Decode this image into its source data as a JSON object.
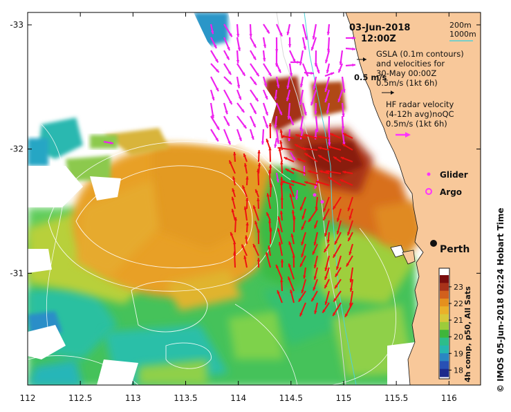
{
  "header": {
    "date": "03-Jun-2018",
    "time": "12:00Z"
  },
  "depth_legend": {
    "entries": [
      {
        "label": "200m",
        "color": "#c0c0c0"
      },
      {
        "label": "1000m",
        "color": "#4fd0d8"
      }
    ]
  },
  "gsla_legend": {
    "lines": [
      "GSLA (0.1m contours)",
      "and velocities for",
      "30-May 00:00Z",
      "0.5m/s (1kt 6h)"
    ],
    "scale_label": "0.5 m/s"
  },
  "hf_legend": {
    "lines": [
      "HF radar velocity",
      "(4-12h avg)noQC",
      "0.5m/s (1kt 6h)"
    ]
  },
  "markers": {
    "glider_label": "Glider",
    "argo_label": "Argo",
    "city_label": "Perth"
  },
  "colorbar": {
    "label": "4h comp, p50, All Sats",
    "ticks": [
      "23",
      "22",
      "21",
      "20",
      "19",
      "18"
    ],
    "min": 17.6,
    "max": 23.7,
    "colors": [
      "#7a0d0d",
      "#a8321a",
      "#d2601c",
      "#e5901e",
      "#eab12a",
      "#d8c83a",
      "#9ccc3a",
      "#3fb63a",
      "#2dbd8a",
      "#26b6b0",
      "#2a86c2",
      "#2850b4",
      "#1c2a8c"
    ]
  },
  "credit": "©  IMOS 05-Jun-2018 02:24 Hobart Time",
  "axes": {
    "x_ticks": [
      "112",
      "112.5",
      "113",
      "113.5",
      "114",
      "114.5",
      "115",
      "115.5",
      "116"
    ],
    "y_ticks": [
      "-31",
      "-32",
      "-33"
    ],
    "lon_range": [
      112,
      116.3
    ],
    "lat_range": [
      -33.1,
      -30.1
    ]
  },
  "colors": {
    "land": "#f8c89a",
    "radar_arrow": "#ee1111",
    "gsla_arrow": "#ee22ee",
    "contour": "#ffffff"
  }
}
